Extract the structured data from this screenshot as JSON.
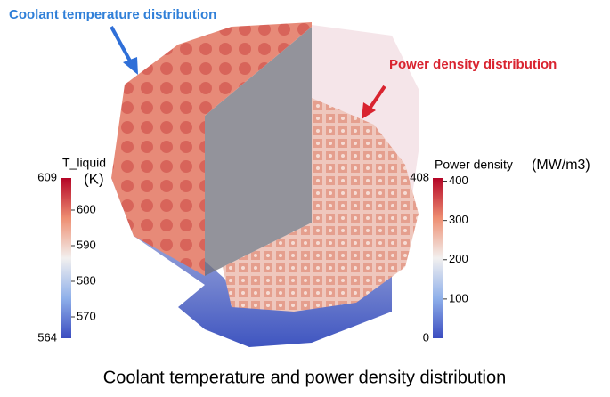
{
  "annotations": {
    "coolant": "Coolant temperature distribution",
    "power": "Power density distribution"
  },
  "colorbars": [
    {
      "title": "T_liquid",
      "unit": "(K)",
      "min": 564,
      "max": 609,
      "ticks": [
        570,
        580,
        590,
        600
      ]
    },
    {
      "title": "Power density",
      "unit": "(MW/m3)",
      "min": 0,
      "max": 408,
      "ticks": [
        100,
        200,
        300,
        400
      ]
    }
  ],
  "caption": "Coolant temperature and power density distribution"
}
